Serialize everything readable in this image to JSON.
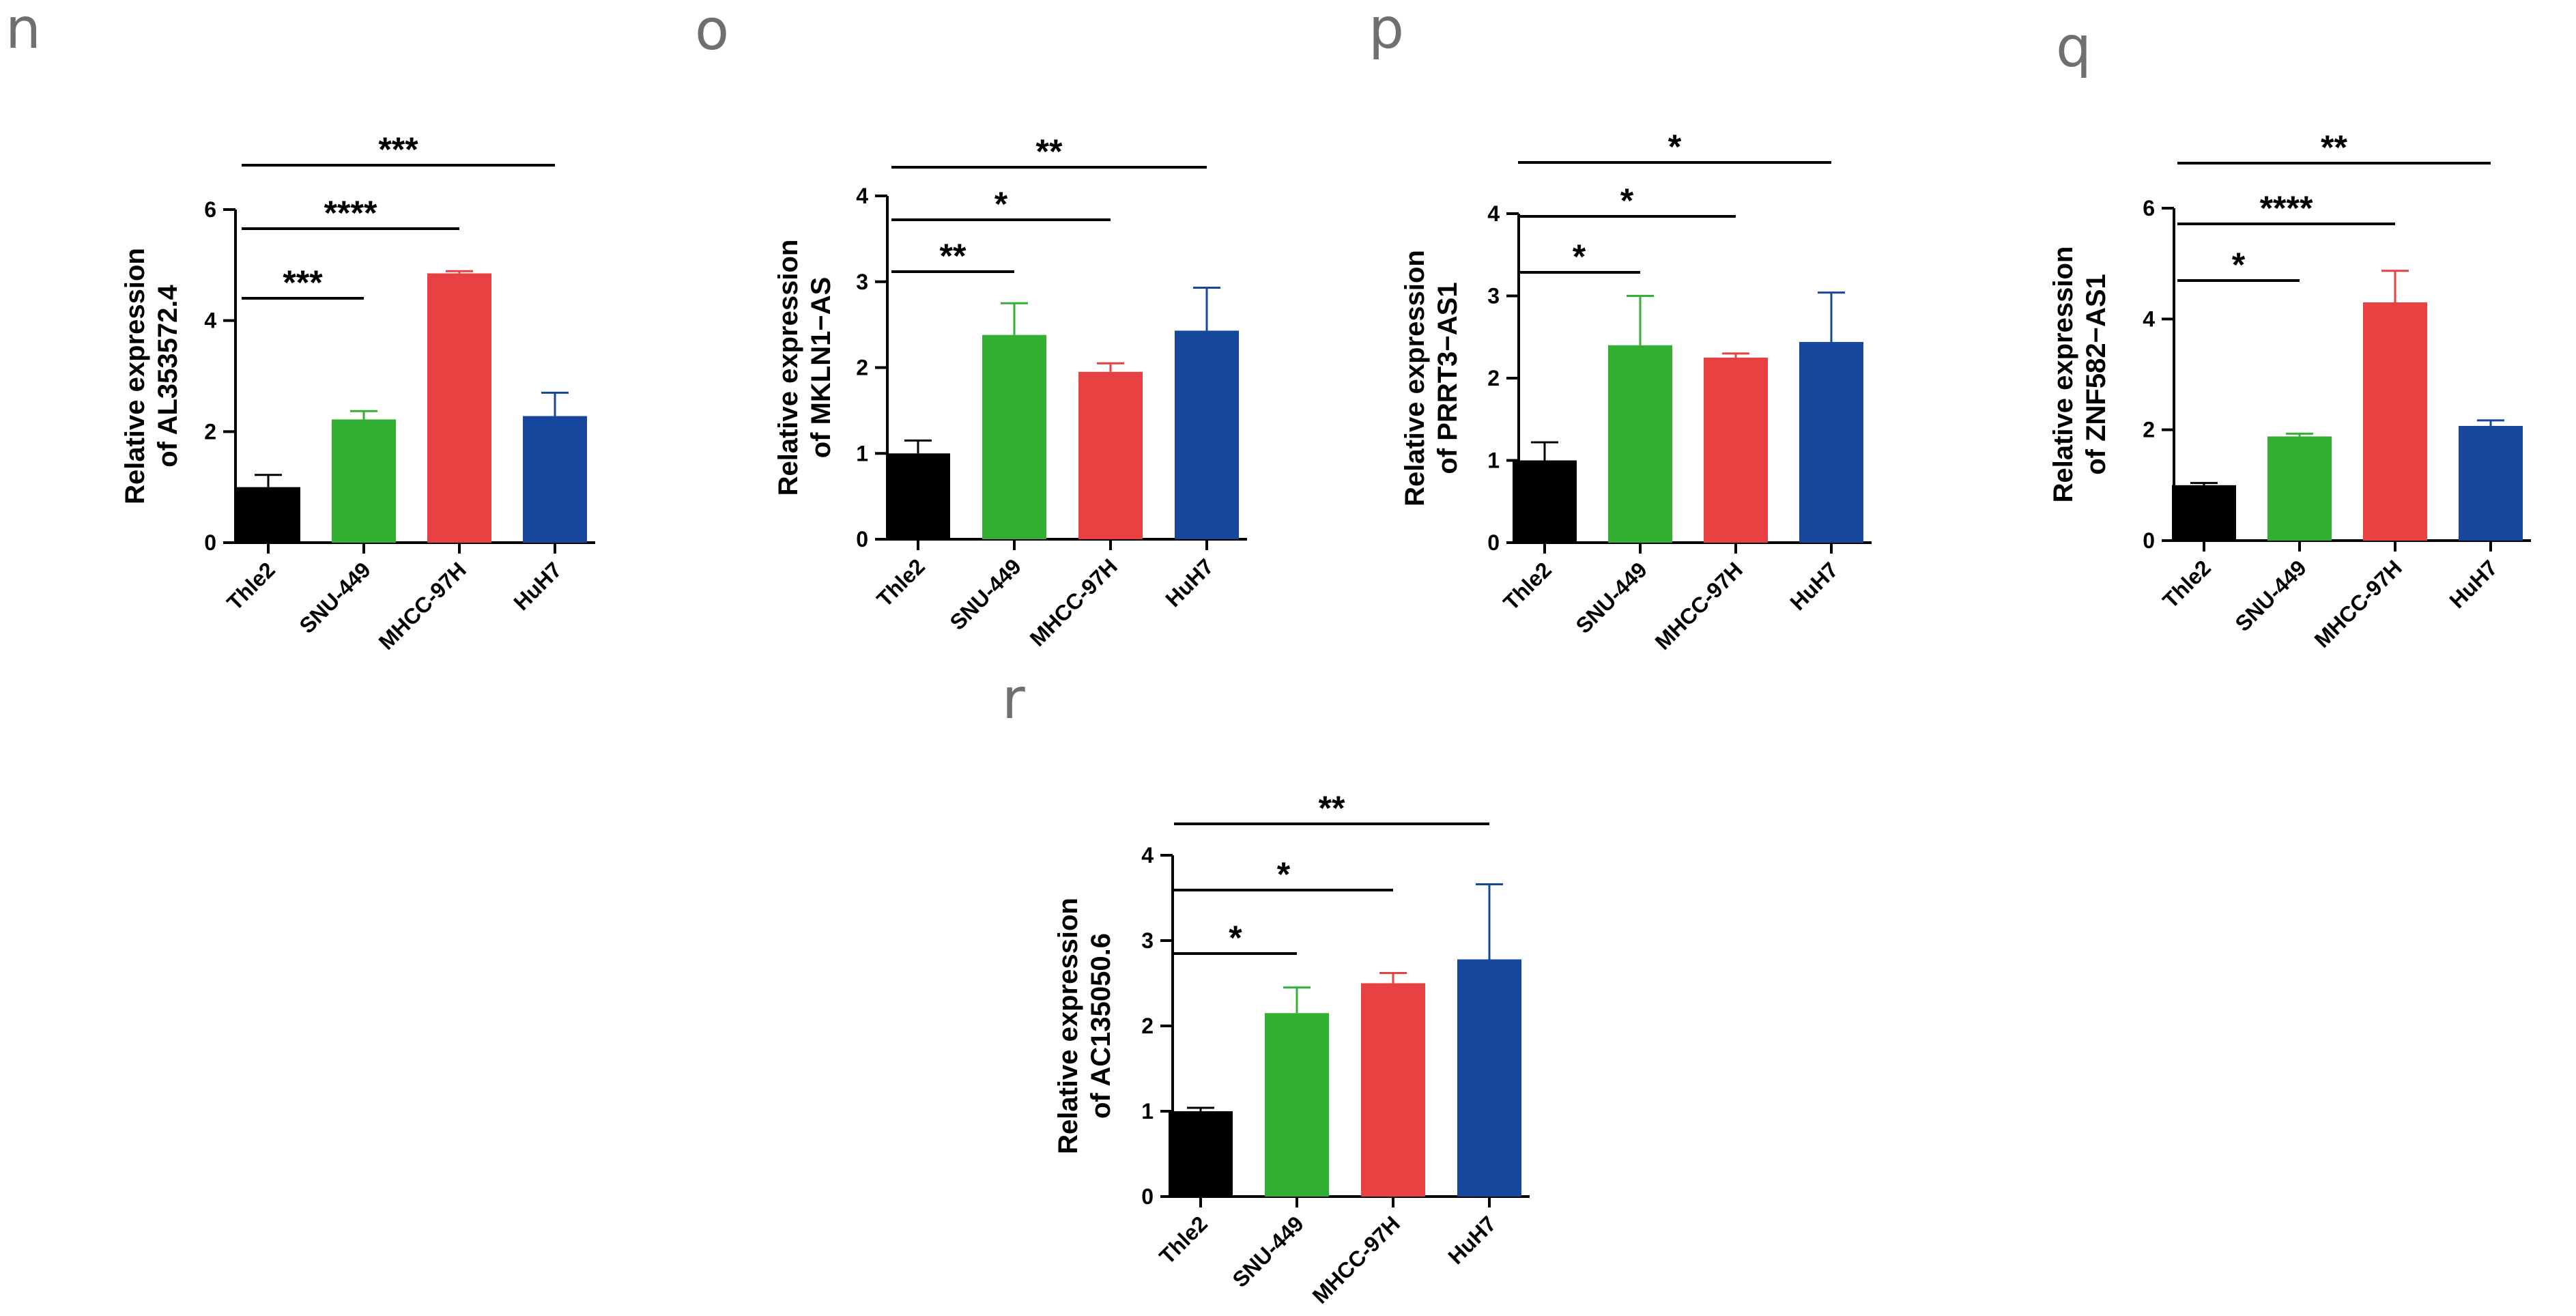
{
  "colors": {
    "Thle2": "#000000",
    "SNU-449": "#33b033",
    "MHCC-97H": "#e84141",
    "HuH7": "#17479c"
  },
  "chart_data": [
    {
      "panel": "n",
      "type": "bar",
      "ylabel": [
        "Relative expression",
        "of AL353572.4"
      ],
      "ylim": [
        0,
        6
      ],
      "yticks": [
        "0",
        "2",
        "4",
        "6"
      ],
      "categories": [
        "Thle2",
        "SNU-449",
        "MHCC-97H",
        "HuH7"
      ],
      "values": [
        1.0,
        2.22,
        4.85,
        2.28
      ],
      "errors": [
        0.22,
        0.15,
        0.04,
        0.42
      ],
      "significance": [
        {
          "from": 0,
          "to": 1,
          "label": "***"
        },
        {
          "from": 0,
          "to": 2,
          "label": "****"
        },
        {
          "from": 0,
          "to": 3,
          "label": "***"
        }
      ]
    },
    {
      "panel": "o",
      "type": "bar",
      "ylabel": [
        "Relative expression",
        "of MKLN1−AS"
      ],
      "ylim": [
        0,
        4
      ],
      "yticks": [
        "0",
        "1",
        "2",
        "3",
        "4"
      ],
      "categories": [
        "Thle2",
        "SNU-449",
        "MHCC-97H",
        "HuH7"
      ],
      "values": [
        1.0,
        2.38,
        1.95,
        2.43
      ],
      "errors": [
        0.15,
        0.37,
        0.1,
        0.5
      ],
      "significance": [
        {
          "from": 0,
          "to": 1,
          "label": "**"
        },
        {
          "from": 0,
          "to": 2,
          "label": "*"
        },
        {
          "from": 0,
          "to": 3,
          "label": "**"
        }
      ]
    },
    {
      "panel": "p",
      "type": "bar",
      "ylabel": [
        "Relative expression",
        "of PRRT3−AS1"
      ],
      "ylim": [
        0,
        4
      ],
      "yticks": [
        "0",
        "1",
        "2",
        "3",
        "4"
      ],
      "categories": [
        "Thle2",
        "SNU-449",
        "MHCC-97H",
        "HuH7"
      ],
      "values": [
        1.0,
        2.4,
        2.25,
        2.44
      ],
      "errors": [
        0.22,
        0.6,
        0.05,
        0.6
      ],
      "significance": [
        {
          "from": 0,
          "to": 1,
          "label": "*"
        },
        {
          "from": 0,
          "to": 2,
          "label": "*"
        },
        {
          "from": 0,
          "to": 3,
          "label": "*"
        }
      ]
    },
    {
      "panel": "q",
      "type": "bar",
      "ylabel": [
        "Relative expression",
        "of ZNF582−AS1"
      ],
      "ylim": [
        0,
        6
      ],
      "yticks": [
        "0",
        "2",
        "4",
        "6"
      ],
      "categories": [
        "Thle2",
        "SNU-449",
        "MHCC-97H",
        "HuH7"
      ],
      "values": [
        1.0,
        1.88,
        4.3,
        2.07
      ],
      "errors": [
        0.04,
        0.05,
        0.57,
        0.1
      ],
      "significance": [
        {
          "from": 0,
          "to": 1,
          "label": "*"
        },
        {
          "from": 0,
          "to": 2,
          "label": "****"
        },
        {
          "from": 0,
          "to": 3,
          "label": "**"
        }
      ]
    },
    {
      "panel": "r",
      "type": "bar",
      "ylabel": [
        "Relative expression",
        "of AC135050.6"
      ],
      "ylim": [
        0,
        4
      ],
      "yticks": [
        "0",
        "1",
        "2",
        "3",
        "4"
      ],
      "categories": [
        "Thle2",
        "SNU-449",
        "MHCC-97H",
        "HuH7"
      ],
      "values": [
        1.0,
        2.15,
        2.5,
        2.78
      ],
      "errors": [
        0.04,
        0.3,
        0.12,
        0.88
      ],
      "significance": [
        {
          "from": 0,
          "to": 1,
          "label": "*"
        },
        {
          "from": 0,
          "to": 2,
          "label": "*"
        },
        {
          "from": 0,
          "to": 3,
          "label": "**"
        }
      ]
    }
  ]
}
